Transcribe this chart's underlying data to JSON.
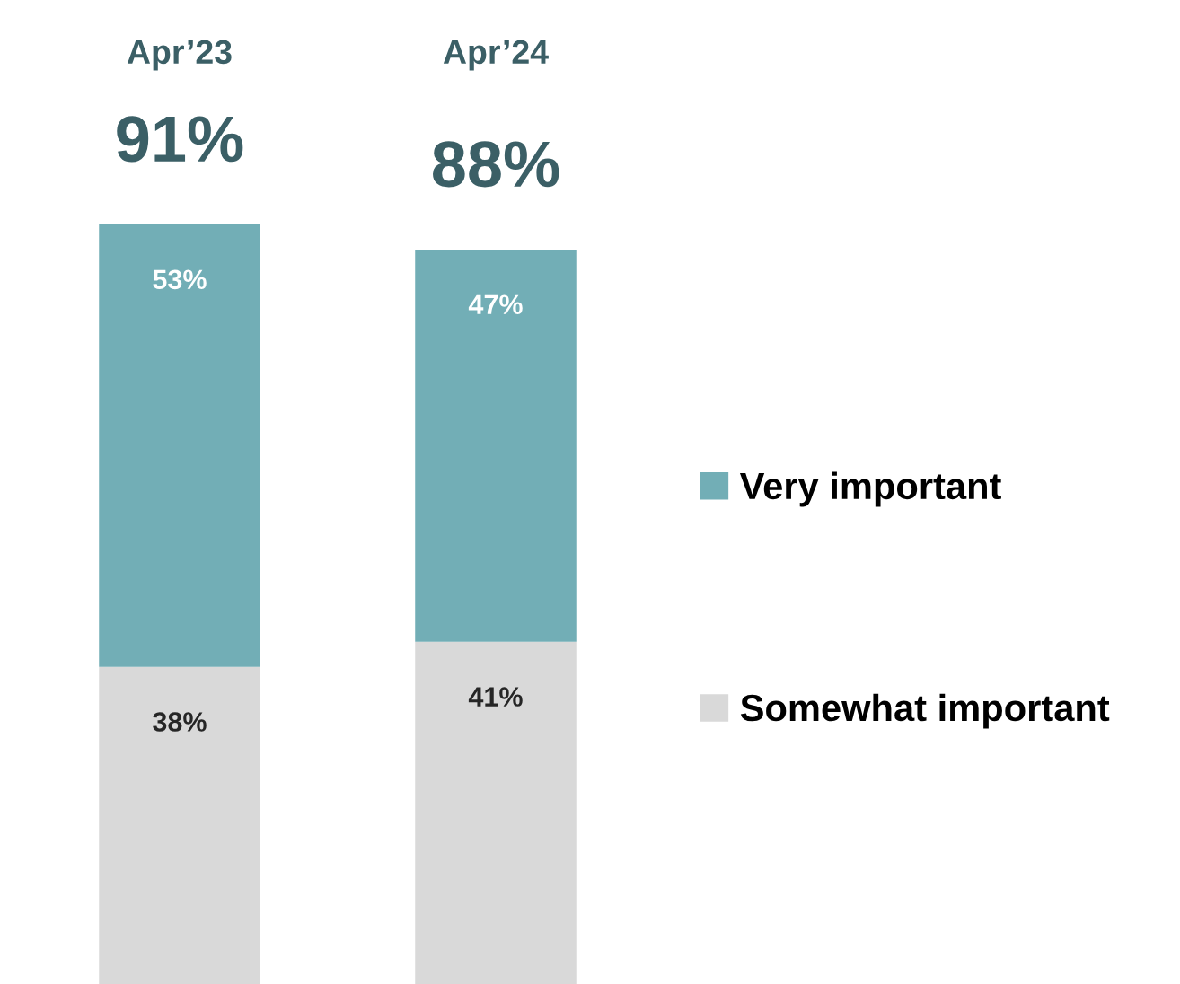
{
  "chart_data": {
    "type": "bar",
    "stacked": true,
    "categories": [
      "Apr’23",
      "Apr’24"
    ],
    "series": [
      {
        "name": "Somewhat important",
        "color": "#d9d9d9",
        "values": [
          38,
          41
        ],
        "value_labels": [
          "38%",
          "41%"
        ]
      },
      {
        "name": "Very important",
        "color": "#72aeb6",
        "values": [
          53,
          47
        ],
        "value_labels": [
          "53%",
          "47%"
        ]
      }
    ],
    "totals": [
      "91%",
      "88%"
    ],
    "legend": "right"
  }
}
